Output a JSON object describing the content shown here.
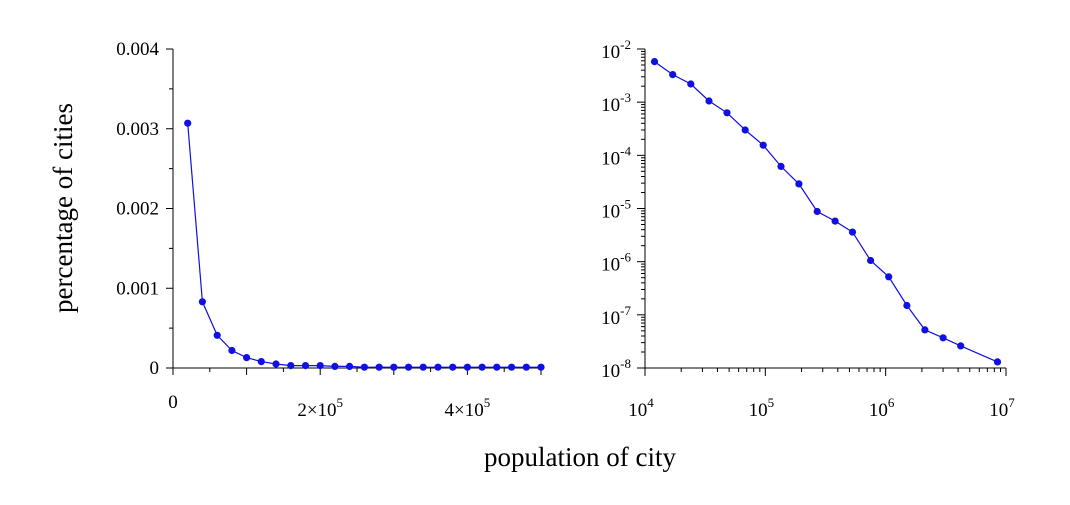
{
  "xlabel": "population of city",
  "ylabel": "percentage of cities",
  "colors": {
    "series": "#1010e0",
    "axis": "#000000"
  },
  "chart_data": [
    {
      "type": "line",
      "xscale": "linear",
      "yscale": "linear",
      "xlim": [
        0,
        500000
      ],
      "ylim": [
        0,
        0.004
      ],
      "x_ticks": [
        {
          "value": 0,
          "label": "0"
        },
        {
          "value": 200000,
          "mant": "2×10",
          "exp": "5"
        },
        {
          "value": 400000,
          "mant": "4×10",
          "exp": "5"
        }
      ],
      "y_ticks": [
        "0",
        "0.001",
        "0.002",
        "0.003",
        "0.004"
      ],
      "y_tick_values": [
        0,
        0.001,
        0.002,
        0.003,
        0.004
      ],
      "markers": true,
      "x": [
        20000,
        40000,
        60000,
        80000,
        100000,
        120000,
        140000,
        160000,
        180000,
        200000,
        220000,
        240000,
        260000,
        280000,
        300000,
        320000,
        340000,
        360000,
        380000,
        400000,
        420000,
        440000,
        460000,
        480000,
        500000
      ],
      "y": [
        0.00307,
        0.00083,
        0.00041,
        0.00022,
        0.00013,
        8e-05,
        5e-05,
        3e-05,
        3e-05,
        3e-05,
        2e-05,
        2e-05,
        1e-05,
        1e-05,
        1e-05,
        1e-05,
        1e-05,
        1e-05,
        1e-05,
        1e-05,
        1e-05,
        1e-05,
        1e-05,
        1e-05,
        1e-05
      ]
    },
    {
      "type": "line",
      "xscale": "log",
      "yscale": "log",
      "xlim": [
        10000,
        10000000
      ],
      "ylim": [
        1e-08,
        0.01
      ],
      "x_ticks": [
        {
          "value": 10000,
          "mant": "10",
          "exp": "4"
        },
        {
          "value": 100000,
          "mant": "10",
          "exp": "5"
        },
        {
          "value": 1000000,
          "mant": "10",
          "exp": "6"
        },
        {
          "value": 10000000,
          "mant": "10",
          "exp": "7"
        }
      ],
      "y_ticks": [
        {
          "value": 1e-08,
          "mant": "10",
          "exp": "-8"
        },
        {
          "value": 1e-07,
          "mant": "10",
          "exp": "-7"
        },
        {
          "value": 1e-06,
          "mant": "10",
          "exp": "-6"
        },
        {
          "value": 1e-05,
          "mant": "10",
          "exp": "-5"
        },
        {
          "value": 0.0001,
          "mant": "10",
          "exp": "-4"
        },
        {
          "value": 0.001,
          "mant": "10",
          "exp": "-3"
        },
        {
          "value": 0.01,
          "mant": "10",
          "exp": "-2"
        }
      ],
      "markers": true,
      "x": [
        12000,
        17000,
        24000,
        34000,
        48000,
        68000,
        96000,
        135000,
        190000,
        270000,
        380000,
        530000,
        750000,
        1060000,
        1500000,
        2120000,
        3000000,
        4200000,
        8500000
      ],
      "y": [
        0.0058,
        0.0033,
        0.0022,
        0.00105,
        0.00063,
        0.0003,
        0.000155,
        6.2e-05,
        2.9e-05,
        8.8e-06,
        5.8e-06,
        3.6e-06,
        1.05e-06,
        5.2e-07,
        1.5e-07,
        5.2e-08,
        3.7e-08,
        2.6e-08,
        1.3e-08
      ]
    }
  ]
}
